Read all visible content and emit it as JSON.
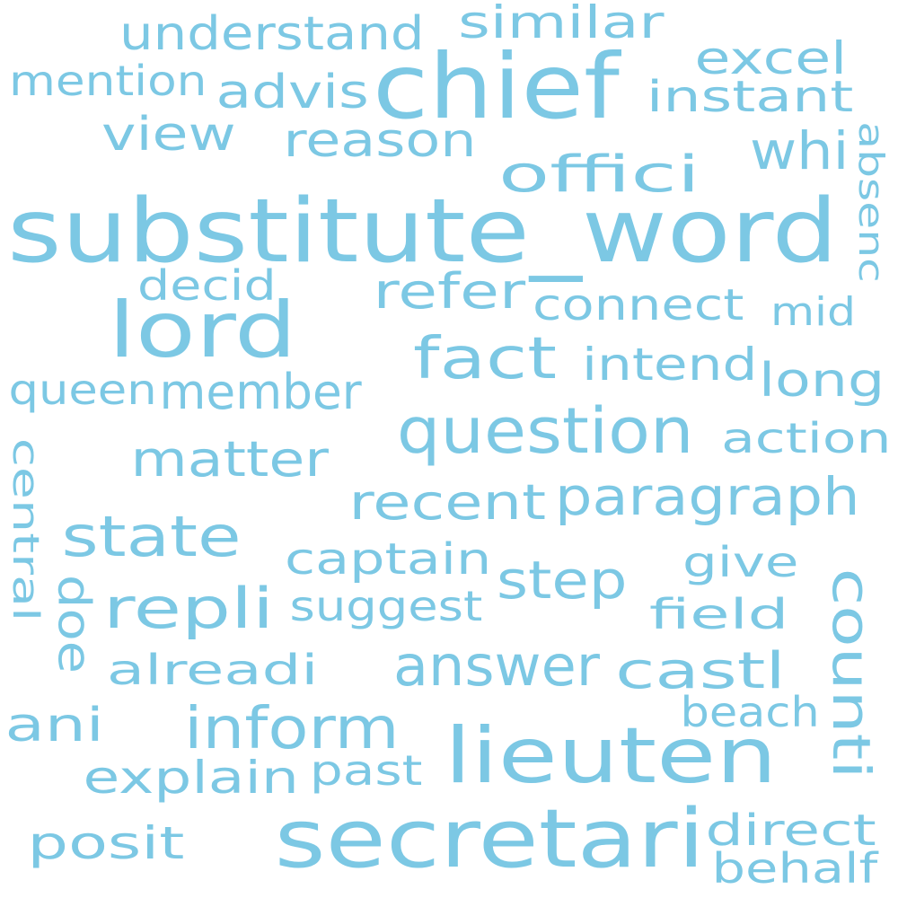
{
  "word_color": "#7cc8e4",
  "words": [
    "substitute_word",
    "chief",
    "lord",
    "secretari",
    "lieuten",
    "question",
    "fact",
    "answer",
    "counti",
    "inform",
    "paragraph",
    "repli",
    "state",
    "recent",
    "refer",
    "offici",
    "reason",
    "member",
    "matter",
    "understand",
    "advis",
    "step",
    "castl",
    "connect",
    "view",
    "similar",
    "excel",
    "instant",
    "mention",
    "whi",
    "decid",
    "intend",
    "long",
    "queen",
    "action",
    "captain",
    "suggest",
    "alreadi",
    "explain",
    "posit",
    "direct",
    "behalf",
    "past",
    "beach",
    "field",
    "give",
    "ani",
    "doe",
    "central",
    "absenc",
    "mid"
  ]
}
